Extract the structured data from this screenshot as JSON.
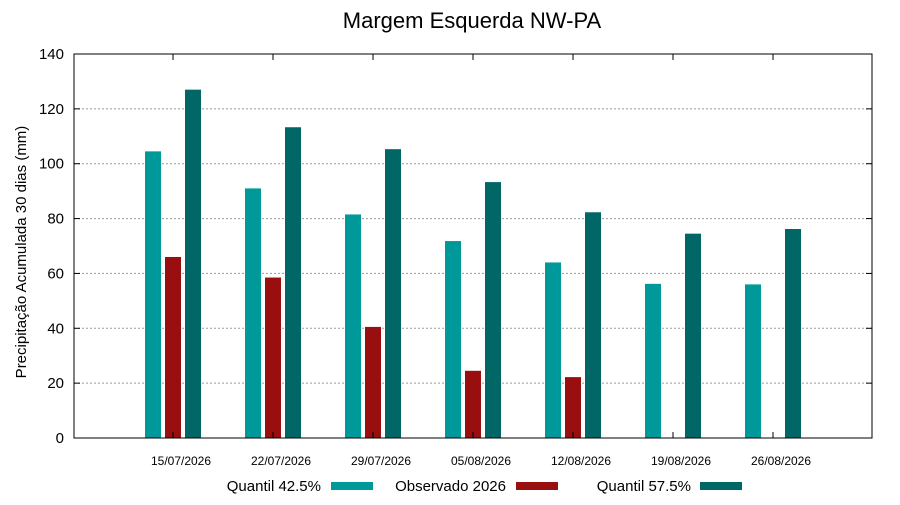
{
  "chart_data": {
    "type": "bar",
    "title": "Margem Esquerda NW-PA",
    "xlabel": "",
    "ylabel": "Precipitação Acumulada 30 dias (mm)",
    "ylim": [
      0,
      140
    ],
    "yticks": [
      0,
      20,
      40,
      60,
      80,
      100,
      120,
      140
    ],
    "grid": true,
    "legend_position": "bottom",
    "categories": [
      "15/07/2026",
      "22/07/2026",
      "29/07/2026",
      "05/08/2026",
      "12/08/2026",
      "19/08/2026",
      "26/08/2026"
    ],
    "series": [
      {
        "name": "Quantil 42.5%",
        "color": "#009999",
        "values": [
          104.5,
          91,
          81.5,
          71.8,
          64,
          56.2,
          56
        ]
      },
      {
        "name": "Observado 2026",
        "color": "#990f0f",
        "values": [
          66,
          58.5,
          40.5,
          24.5,
          22.2,
          null,
          null
        ]
      },
      {
        "name": "Quantil 57.5%",
        "color": "#006666",
        "values": [
          127,
          113.3,
          105.3,
          93.3,
          82.3,
          74.5,
          76.2
        ]
      }
    ]
  }
}
